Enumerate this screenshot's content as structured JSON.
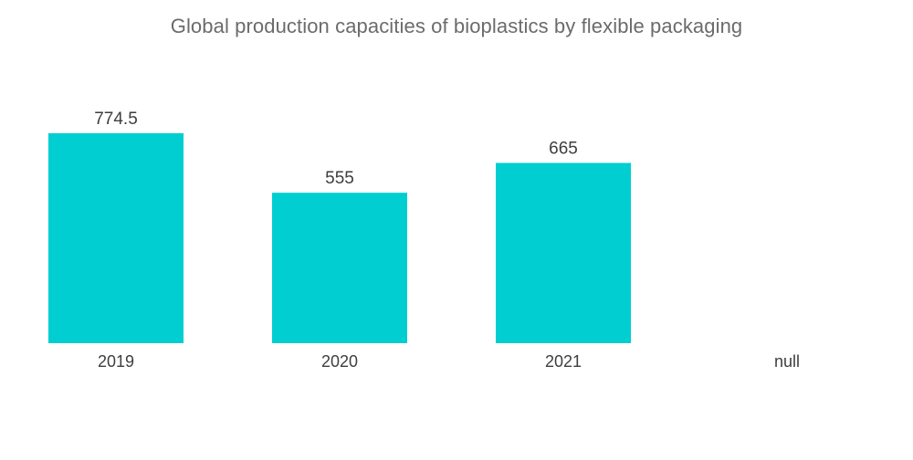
{
  "chart_data": {
    "type": "bar",
    "title": "Global production capacities of bioplastics by flexible packaging",
    "categories": [
      "2019",
      "2020",
      "2021",
      "null"
    ],
    "values": [
      774.5,
      555,
      665,
      null
    ],
    "value_labels": [
      "774.5",
      "555",
      "665",
      ""
    ],
    "bar_color": "#00CED1",
    "xlabel": "",
    "ylabel": "",
    "grid": false,
    "legend": "none"
  }
}
